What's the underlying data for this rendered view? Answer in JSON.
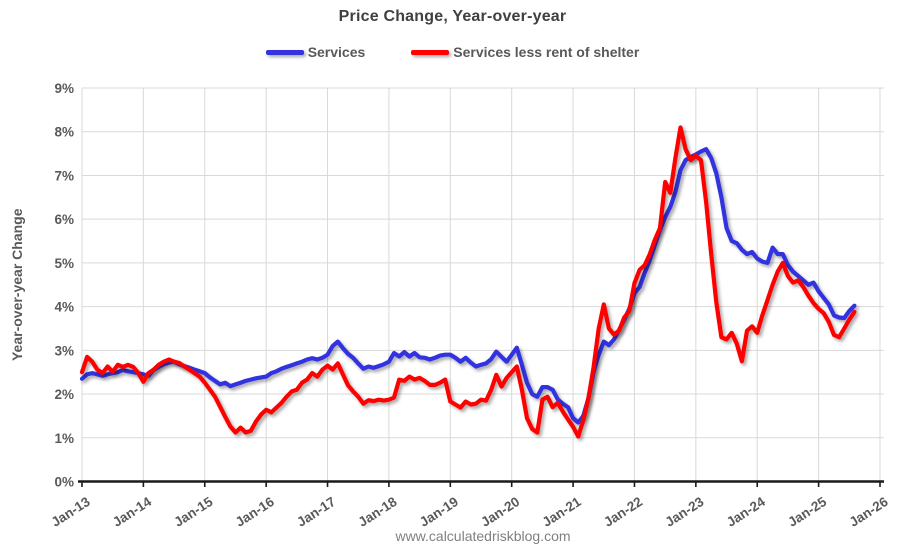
{
  "title": "Price Change, Year-over-year",
  "watermark": "www.calculatedriskblog.com",
  "y_axis_title": "Year-over-year Change",
  "legend": [
    {
      "label": "Services",
      "color": "#3333E0"
    },
    {
      "label": "Services less rent of shelter",
      "color": "#FF0000"
    }
  ],
  "chart_data": {
    "type": "line",
    "title": "Price Change, Year-over-year",
    "ylabel": "Year-over-year Change",
    "xlabel": "",
    "ylim": [
      0,
      9
    ],
    "ytick_step": 1,
    "y_tick_labels": [
      "0%",
      "1%",
      "2%",
      "3%",
      "4%",
      "5%",
      "6%",
      "7%",
      "8%",
      "9%"
    ],
    "x_tick_labels": [
      "Jan-13",
      "Jan-14",
      "Jan-15",
      "Jan-16",
      "Jan-17",
      "Jan-18",
      "Jan-19",
      "Jan-20",
      "Jan-21",
      "Jan-22",
      "Jan-23",
      "Jan-24",
      "Jan-25",
      "Jan-26"
    ],
    "x_start": "Jan-2013",
    "frequency": "monthly",
    "grid": true,
    "legend_position": "top",
    "series": [
      {
        "name": "Services",
        "color": "#3333E0",
        "values": [
          2.35,
          2.45,
          2.48,
          2.45,
          2.42,
          2.45,
          2.48,
          2.5,
          2.55,
          2.52,
          2.5,
          2.48,
          2.45,
          2.42,
          2.55,
          2.62,
          2.68,
          2.72,
          2.74,
          2.68,
          2.64,
          2.6,
          2.56,
          2.52,
          2.48,
          2.38,
          2.3,
          2.22,
          2.26,
          2.18,
          2.22,
          2.26,
          2.3,
          2.33,
          2.36,
          2.38,
          2.4,
          2.48,
          2.52,
          2.58,
          2.62,
          2.66,
          2.7,
          2.74,
          2.79,
          2.82,
          2.79,
          2.83,
          2.9,
          3.1,
          3.2,
          3.05,
          2.92,
          2.83,
          2.7,
          2.58,
          2.63,
          2.6,
          2.64,
          2.68,
          2.74,
          2.94,
          2.86,
          2.96,
          2.86,
          2.94,
          2.84,
          2.83,
          2.79,
          2.83,
          2.88,
          2.9,
          2.9,
          2.83,
          2.74,
          2.83,
          2.72,
          2.63,
          2.67,
          2.7,
          2.8,
          2.97,
          2.85,
          2.74,
          2.9,
          3.06,
          2.67,
          2.26,
          2.0,
          1.94,
          2.16,
          2.16,
          2.1,
          1.88,
          1.78,
          1.7,
          1.45,
          1.35,
          1.5,
          1.9,
          2.5,
          2.9,
          3.2,
          3.12,
          3.25,
          3.47,
          3.7,
          3.95,
          4.31,
          4.45,
          4.77,
          5.07,
          5.41,
          5.75,
          6.05,
          6.28,
          6.62,
          7.12,
          7.35,
          7.42,
          7.48,
          7.55,
          7.6,
          7.4,
          7.05,
          6.5,
          5.8,
          5.5,
          5.45,
          5.3,
          5.2,
          5.25,
          5.1,
          5.03,
          5.0,
          5.35,
          5.2,
          5.2,
          4.95,
          4.8,
          4.7,
          4.6,
          4.5,
          4.55,
          4.35,
          4.2,
          4.05,
          3.8,
          3.75,
          3.74,
          3.9,
          4.02
        ]
      },
      {
        "name": "Services less rent of shelter",
        "color": "#FF0000",
        "values": [
          2.5,
          2.85,
          2.74,
          2.56,
          2.48,
          2.63,
          2.51,
          2.67,
          2.62,
          2.67,
          2.62,
          2.48,
          2.28,
          2.48,
          2.56,
          2.67,
          2.74,
          2.79,
          2.74,
          2.71,
          2.63,
          2.56,
          2.48,
          2.4,
          2.26,
          2.1,
          1.94,
          1.71,
          1.48,
          1.26,
          1.12,
          1.23,
          1.12,
          1.16,
          1.37,
          1.53,
          1.64,
          1.58,
          1.69,
          1.8,
          1.94,
          2.06,
          2.1,
          2.26,
          2.33,
          2.48,
          2.4,
          2.56,
          2.65,
          2.56,
          2.7,
          2.45,
          2.2,
          2.06,
          1.94,
          1.78,
          1.86,
          1.84,
          1.87,
          1.85,
          1.87,
          1.92,
          2.33,
          2.3,
          2.4,
          2.33,
          2.37,
          2.3,
          2.21,
          2.21,
          2.26,
          2.33,
          1.83,
          1.76,
          1.69,
          1.83,
          1.76,
          1.78,
          1.87,
          1.85,
          2.1,
          2.44,
          2.17,
          2.37,
          2.5,
          2.63,
          2.1,
          1.45,
          1.2,
          1.12,
          1.87,
          1.94,
          1.7,
          1.8,
          1.6,
          1.42,
          1.25,
          1.03,
          1.4,
          1.9,
          2.6,
          3.5,
          4.05,
          3.5,
          3.36,
          3.45,
          3.75,
          3.9,
          4.54,
          4.84,
          4.95,
          5.2,
          5.53,
          5.8,
          6.85,
          6.6,
          7.4,
          8.1,
          7.6,
          7.35,
          7.45,
          7.35,
          6.4,
          5.2,
          4.1,
          3.3,
          3.25,
          3.4,
          3.15,
          2.75,
          3.45,
          3.55,
          3.4,
          3.8,
          4.15,
          4.5,
          4.8,
          5.0,
          4.7,
          4.55,
          4.6,
          4.45,
          4.25,
          4.08,
          3.95,
          3.85,
          3.65,
          3.35,
          3.3,
          3.5,
          3.7,
          3.88
        ]
      }
    ]
  }
}
